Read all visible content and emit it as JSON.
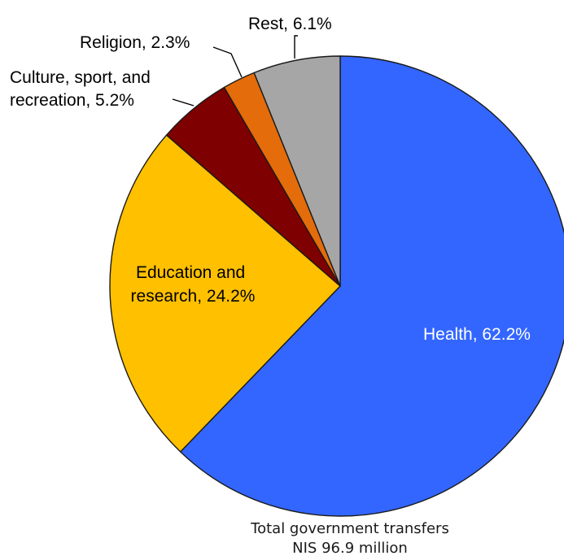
{
  "chart_data": {
    "type": "pie",
    "title": "",
    "categories": [
      "Health",
      "Rest",
      "Religion",
      "Culture, sport, and recreation",
      "Education and research"
    ],
    "slices": [
      {
        "key": "health",
        "name": "Health",
        "value": 62.2,
        "label_lines": [
          "Health, 62.2%"
        ],
        "color": "#3366ff",
        "text_color": "#ffffff"
      },
      {
        "key": "education",
        "name": "Education and research",
        "value": 24.2,
        "label_lines": [
          "Education and",
          "research, 24.2%"
        ],
        "color": "#ffc000",
        "text_color": "#000000"
      },
      {
        "key": "culture",
        "name": "Culture, sport, and recreation",
        "value": 5.2,
        "label_lines": [
          "Culture, sport, and",
          "recreation, 5.2%"
        ],
        "color": "#7f0000",
        "text_color": "#000000"
      },
      {
        "key": "religion",
        "name": "Religion",
        "value": 2.3,
        "label_lines": [
          "Religion, 2.3%"
        ],
        "color": "#e46c0a",
        "text_color": "#000000"
      },
      {
        "key": "rest",
        "name": "Rest",
        "value": 6.1,
        "label_lines": [
          "Rest, 6.1%"
        ],
        "color": "#a6a6a6",
        "text_color": "#000000"
      }
    ],
    "legend": "none",
    "total_caption": [
      "Total government transfers",
      "NIS 96.9 million"
    ]
  }
}
